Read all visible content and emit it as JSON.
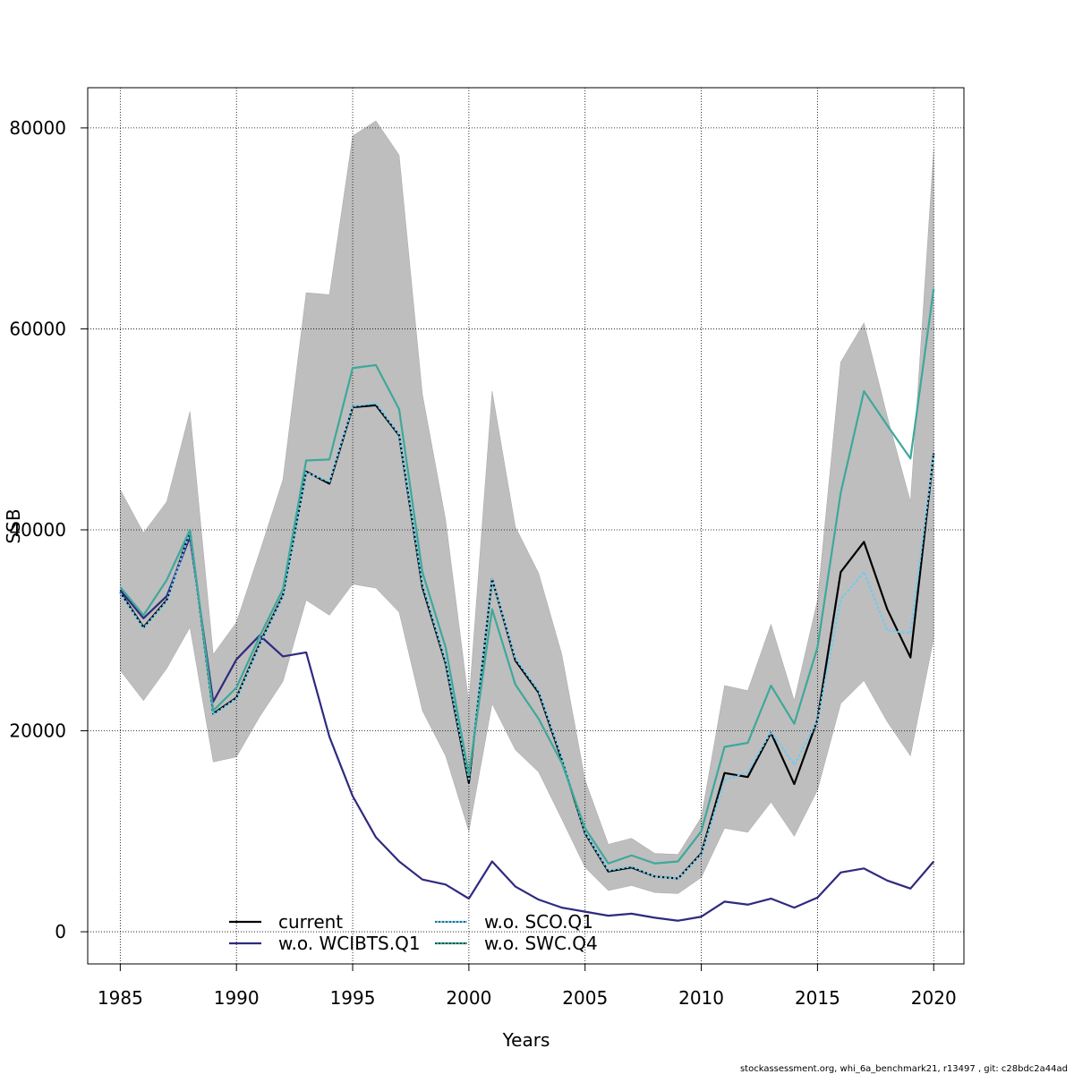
{
  "chart_data": {
    "type": "line",
    "xlabel": "Years",
    "ylabel": "SSB",
    "xlim": [
      1983.6,
      2021.3
    ],
    "ylim": [
      -3200,
      84000
    ],
    "x_ticks": [
      1985,
      1990,
      1995,
      2000,
      2005,
      2010,
      2015,
      2020
    ],
    "y_ticks": [
      0,
      20000,
      40000,
      60000,
      80000
    ],
    "y_tick_labels": [
      "0",
      "20000",
      "40000",
      "60000",
      "80000"
    ],
    "grid": true,
    "legend_position": "bottom-center",
    "x": [
      1985,
      1986,
      1987,
      1988,
      1989,
      1990,
      1991,
      1992,
      1993,
      1994,
      1995,
      1996,
      1997,
      1998,
      1999,
      2000,
      2001,
      2002,
      2003,
      2004,
      2005,
      2006,
      2007,
      2008,
      2009,
      2010,
      2011,
      2012,
      2013,
      2014,
      2015,
      2016,
      2017,
      2018,
      2019,
      2020
    ],
    "band": {
      "color": "#bebebe",
      "upper": [
        44000,
        39700,
        42800,
        51800,
        27600,
        30800,
        37800,
        45000,
        63600,
        63400,
        79200,
        80700,
        77300,
        53500,
        41000,
        22800,
        53800,
        40300,
        35700,
        27600,
        15100,
        8700,
        9300,
        7800,
        7700,
        11400,
        24500,
        24000,
        30600,
        23000,
        33000,
        56700,
        60600,
        51300,
        42800,
        77800
      ],
      "lower": [
        26000,
        23000,
        26200,
        30300,
        16900,
        17400,
        21400,
        24900,
        33000,
        31500,
        34600,
        34200,
        31800,
        22000,
        17500,
        10000,
        22700,
        18100,
        15900,
        11200,
        6400,
        4100,
        4600,
        3900,
        3800,
        5400,
        10300,
        9900,
        12900,
        9500,
        14100,
        22700,
        25000,
        20900,
        17500,
        29200
      ]
    },
    "series": [
      {
        "name": "current",
        "color": "#000000",
        "dash": "",
        "values": [
          33800,
          30300,
          33000,
          39900,
          21700,
          23300,
          28700,
          33500,
          45800,
          44600,
          52200,
          52400,
          49400,
          34300,
          26700,
          14800,
          35100,
          27000,
          23800,
          17100,
          9800,
          6000,
          6400,
          5500,
          5300,
          7800,
          15800,
          15400,
          19800,
          14700,
          21100,
          35800,
          38800,
          32100,
          27300,
          47600
        ]
      },
      {
        "name": "w.o. WCIBTS.Q1",
        "color": "#2e2a7f",
        "dash": "",
        "values": [
          34000,
          31200,
          33400,
          39300,
          22900,
          27100,
          29500,
          27400,
          27800,
          19400,
          13500,
          9400,
          7000,
          5200,
          4700,
          3300,
          7000,
          4500,
          3200,
          2400,
          2000,
          1600,
          1800,
          1400,
          1100,
          1500,
          3000,
          2700,
          3300,
          2400,
          3400,
          5900,
          6300,
          5100,
          4300,
          7000
        ]
      },
      {
        "name": "w.o. SCO.Q1",
        "color": "#6ecbf0",
        "dash": "3,2",
        "values": [
          33700,
          30200,
          32900,
          39800,
          21600,
          23200,
          28600,
          33400,
          45700,
          44800,
          52300,
          52600,
          49500,
          34600,
          26900,
          15200,
          35100,
          27200,
          24000,
          17300,
          9900,
          6100,
          6500,
          5500,
          5300,
          7700,
          15100,
          15900,
          19900,
          16600,
          21000,
          33100,
          35800,
          30000,
          29700,
          47500
        ]
      },
      {
        "name": "w.o. SWC.Q4",
        "color": "#3ea89a",
        "dash": "",
        "values": [
          34300,
          31500,
          35000,
          40000,
          22000,
          24300,
          29400,
          34100,
          46900,
          47000,
          56100,
          56400,
          52000,
          35800,
          28300,
          15600,
          32100,
          24600,
          21200,
          16800,
          10300,
          6800,
          7600,
          6800,
          7000,
          10000,
          18400,
          18800,
          24500,
          20700,
          28300,
          43700,
          53800,
          50400,
          47100,
          64000
        ]
      }
    ],
    "legend_entries": [
      {
        "name": "current",
        "color": "#000000"
      },
      {
        "name": "w.o. WCIBTS.Q1",
        "color": "#2e2a7f"
      },
      {
        "name": "w.o. SCO.Q1",
        "color": "#6ecbf0",
        "dotted": true
      },
      {
        "name": "w.o. SWC.Q4",
        "color": "#3ea89a",
        "dotted": true
      }
    ]
  },
  "footer_text": "stockassessment.org, whi_6a_benchmark21, r13497 , git: c28bdc2a44ad"
}
